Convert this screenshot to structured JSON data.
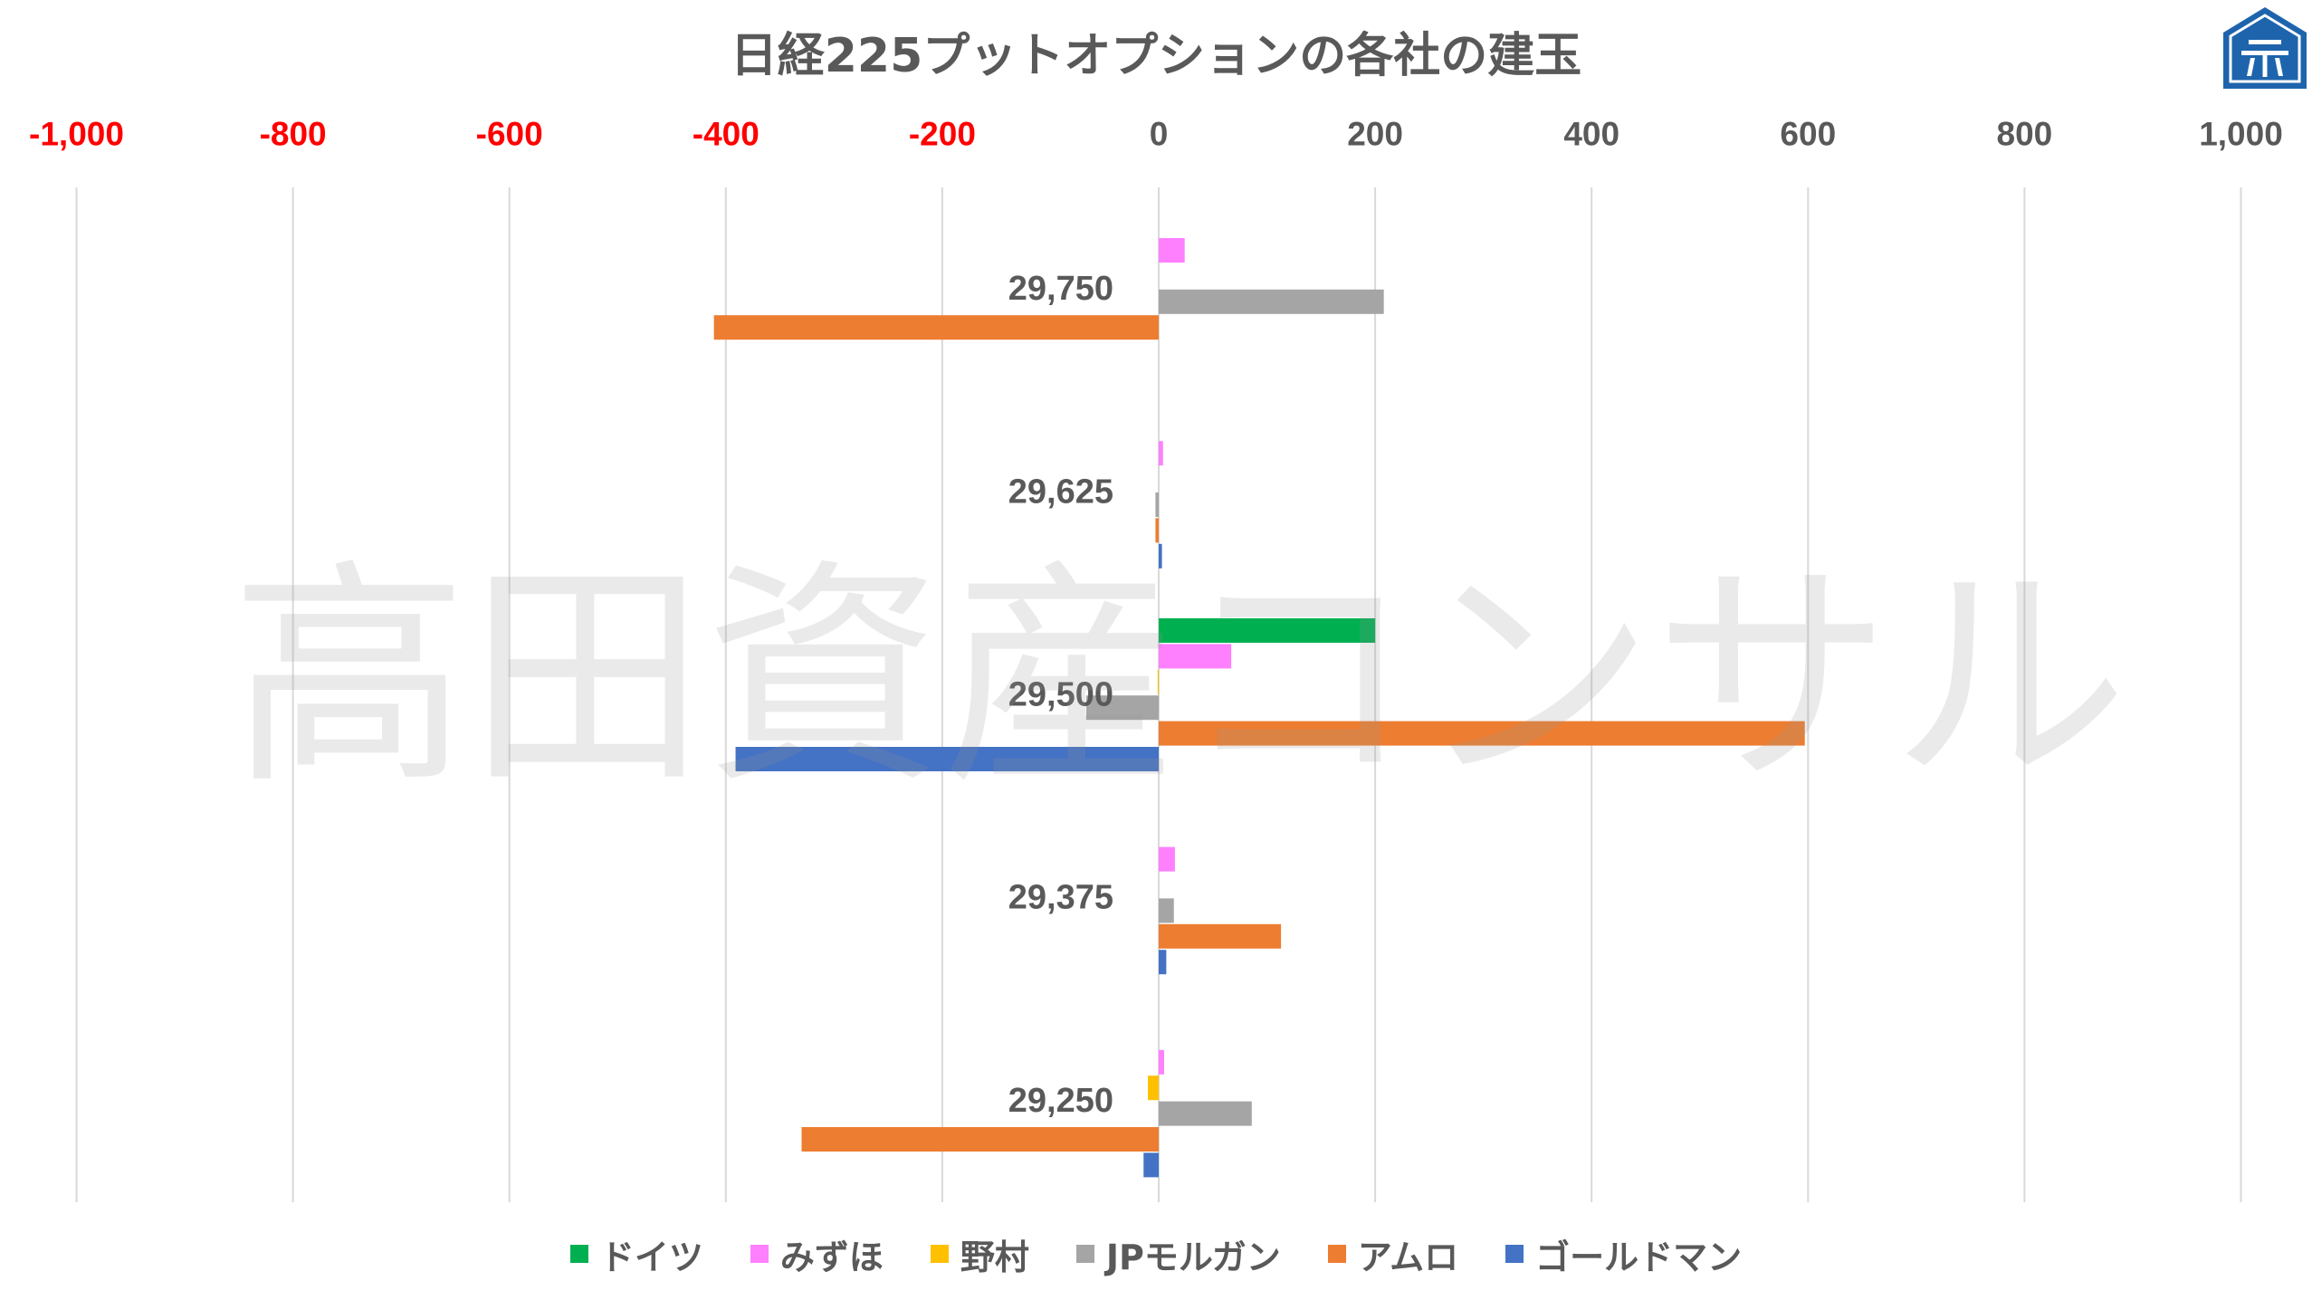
{
  "chart_data": {
    "type": "bar",
    "orientation": "horizontal",
    "title": "日経225プットオプションの各社の建玉",
    "categories": [
      "29,750",
      "29,625",
      "29,500",
      "29,375",
      "29,250"
    ],
    "series": [
      {
        "name": "ドイツ",
        "color": "#00b050",
        "values": [
          0,
          0,
          200,
          0,
          0
        ]
      },
      {
        "name": "みずほ",
        "color": "#ff80ff",
        "values": [
          24,
          4,
          67,
          15,
          5
        ]
      },
      {
        "name": "野村",
        "color": "#ffc000",
        "values": [
          0,
          0,
          -1,
          0,
          -10
        ]
      },
      {
        "name": "JPモルガン",
        "color": "#a5a5a5",
        "values": [
          208,
          -3,
          -67,
          14,
          86
        ]
      },
      {
        "name": "アムロ",
        "color": "#ed7d31",
        "values": [
          -411,
          -3,
          597,
          113,
          -330
        ]
      },
      {
        "name": "ゴールドマン",
        "color": "#4472c4",
        "values": [
          0,
          3,
          -391,
          7,
          -14
        ]
      }
    ],
    "xlim": [
      -1000,
      1000
    ],
    "xticks": [
      -1000,
      -800,
      -600,
      -400,
      -200,
      0,
      200,
      400,
      600,
      800,
      1000
    ],
    "xtick_labels": [
      "-1,000",
      "-800",
      "-600",
      "-400",
      "-200",
      "0",
      "200",
      "400",
      "600",
      "800",
      "1,000"
    ],
    "grid": true,
    "legend": "bottom"
  },
  "colors": {
    "text": "#595959",
    "negative_tick": "#ff0000",
    "grid": "#d9d9d9"
  },
  "watermark": {
    "text": "高田資産コンサル"
  },
  "logo": {
    "icon": "house-logo-icon",
    "color": "#1e64ad"
  }
}
